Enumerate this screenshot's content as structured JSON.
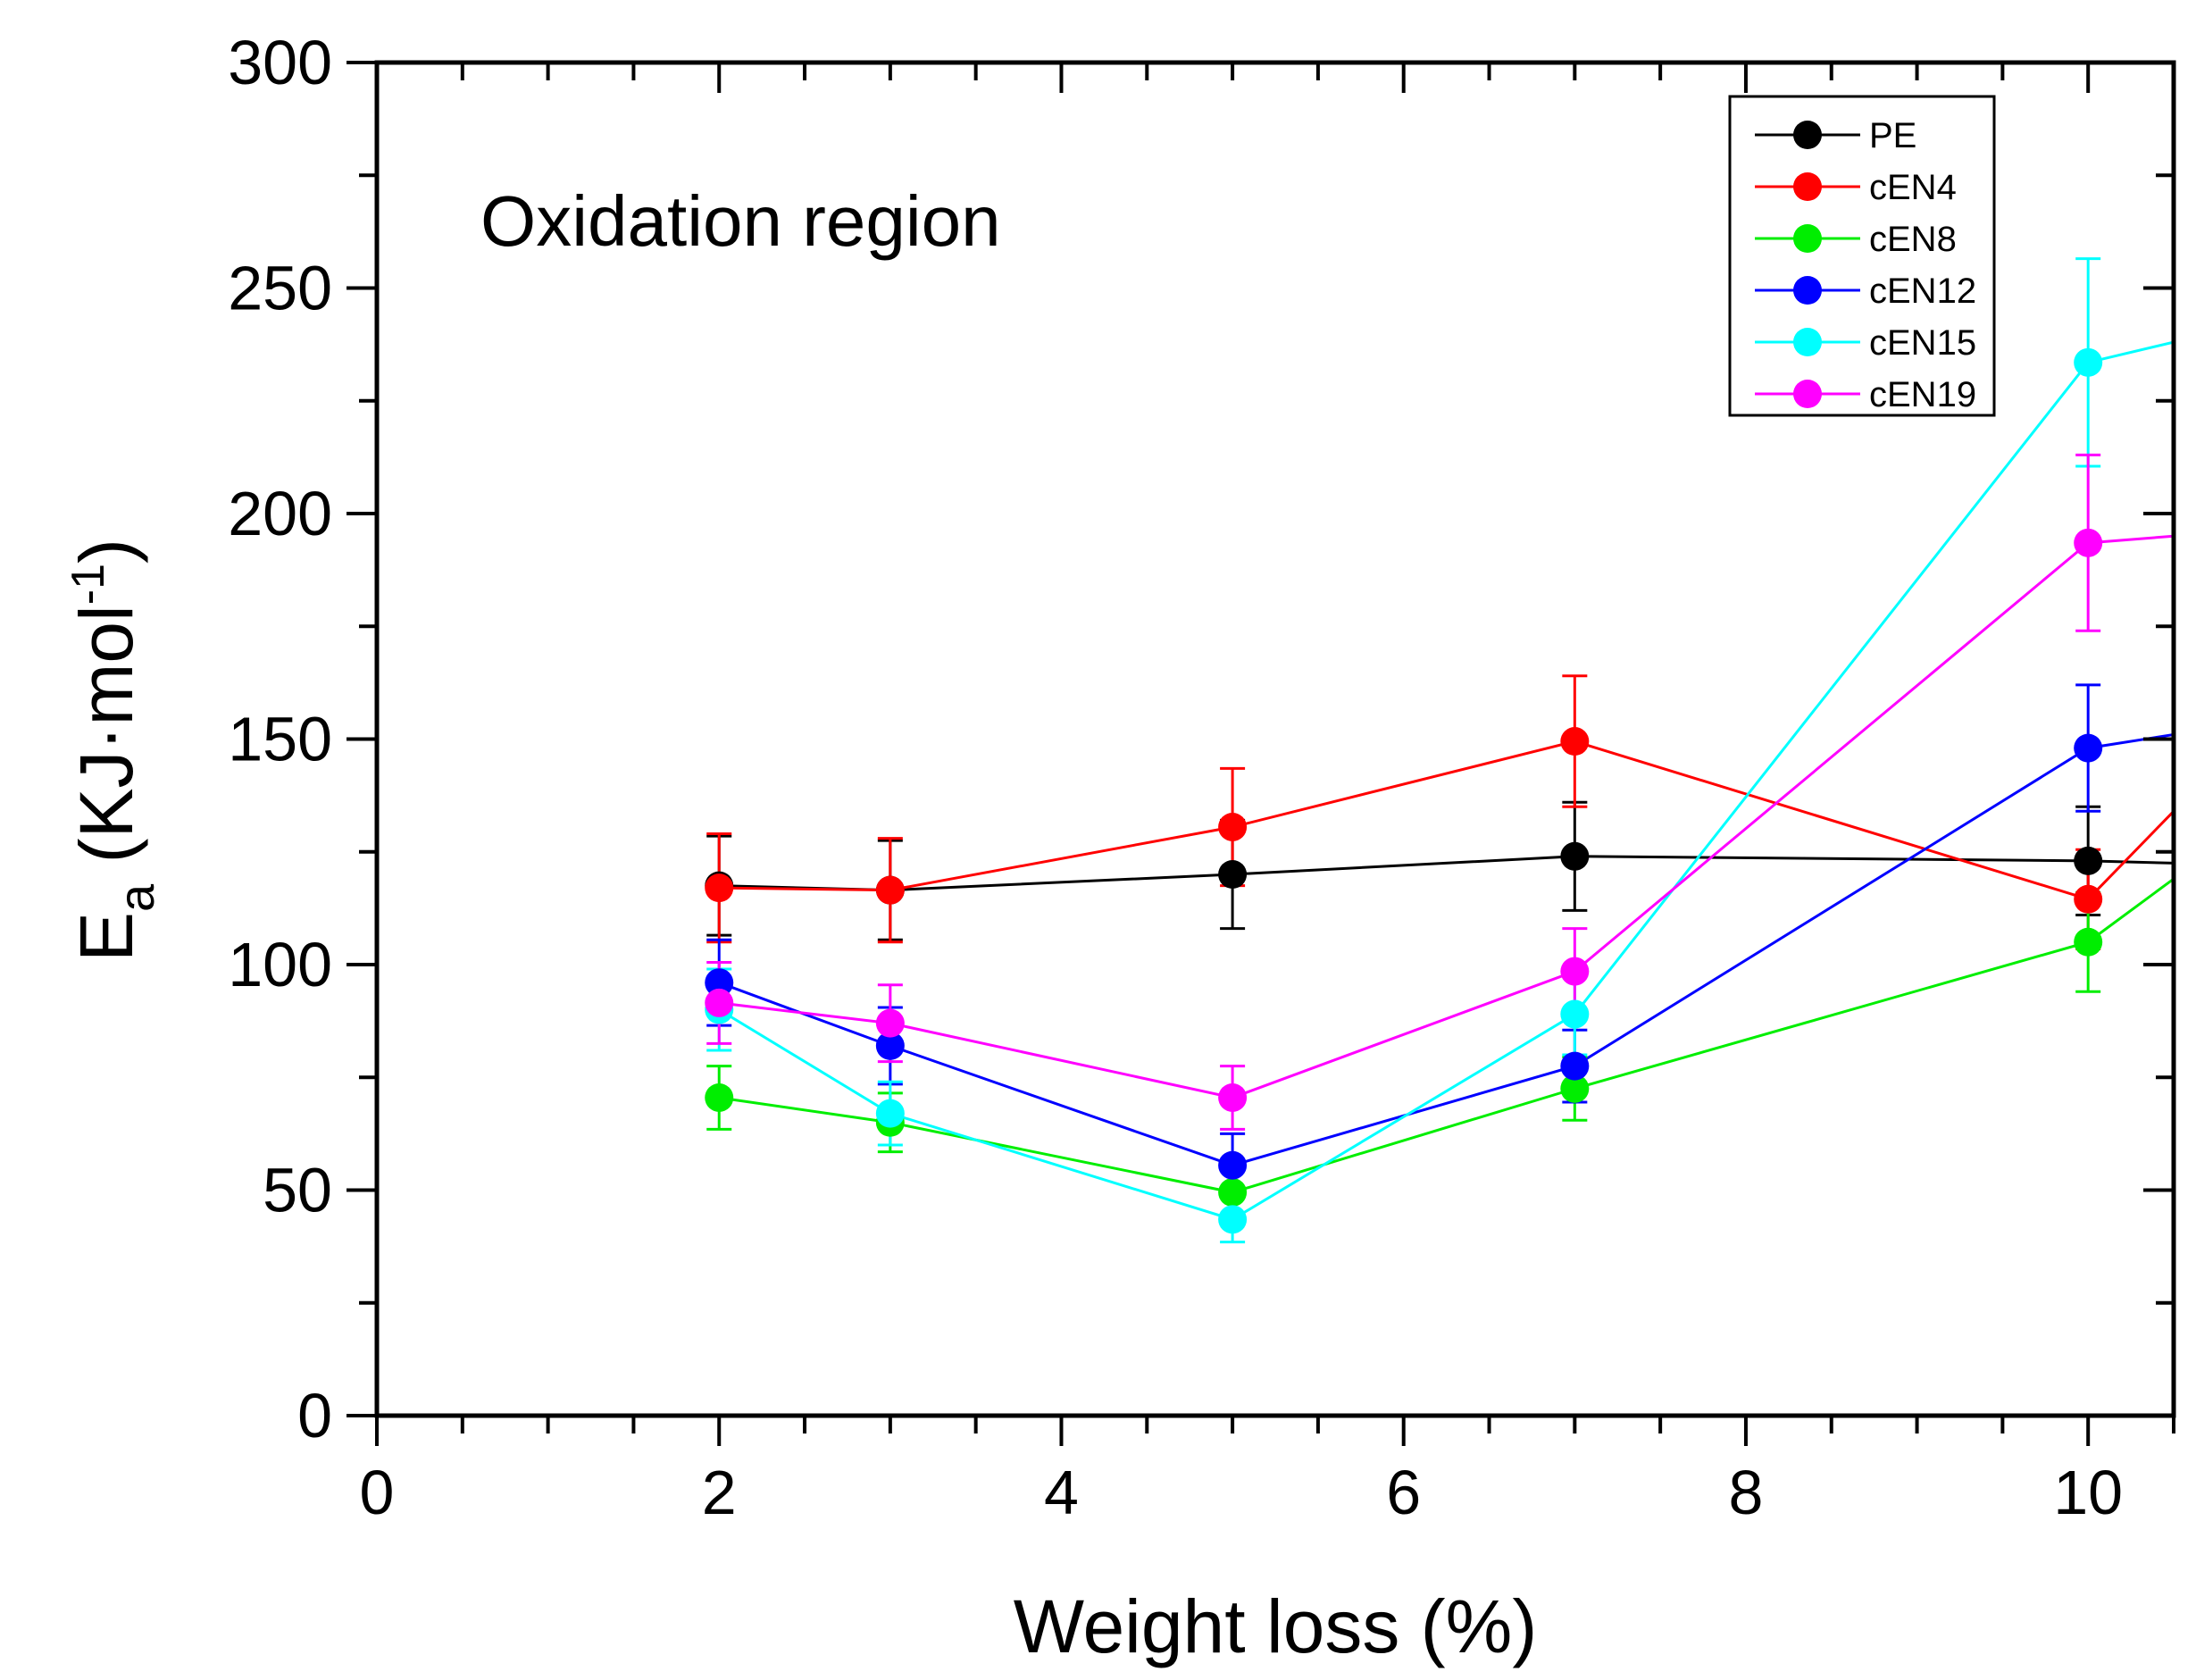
{
  "chart_data": {
    "type": "line",
    "title": "",
    "annotation": "Oxidation region",
    "xlabel": "Weight loss (%)",
    "ylabel": {
      "main": "E",
      "sub": "a",
      "unit_prefix": " (KJ·mol",
      "sup": "-1",
      "unit_suffix": ")"
    },
    "xlim": [
      0,
      10.5
    ],
    "ylim": [
      0,
      300
    ],
    "xticks": [
      0,
      2,
      4,
      6,
      8,
      10
    ],
    "xtick_labels": [
      "0",
      "2",
      "4",
      "6",
      "8",
      "10"
    ],
    "yticks": [
      0,
      50,
      100,
      150,
      200,
      250,
      300
    ],
    "ytick_labels": [
      "0",
      "50",
      "100",
      "150",
      "200",
      "250",
      "300"
    ],
    "x_minor_step": 0.5,
    "y_minor_step": 25,
    "grid": false,
    "legend_position": "top-right",
    "x": [
      2,
      3,
      5,
      7,
      10
    ],
    "series": [
      {
        "name": "PE",
        "color": "#000000",
        "values": [
          117.5,
          116.5,
          120,
          124,
          123
        ],
        "errors": [
          11,
          11,
          12,
          12,
          12
        ],
        "ext_y": 122.5
      },
      {
        "name": "cEN4",
        "color": "#ff0000",
        "values": [
          117,
          116.5,
          130.5,
          149.5,
          114.5
        ],
        "errors": [
          12,
          11.5,
          13,
          14.5,
          11
        ],
        "ext_y": 134
      },
      {
        "name": "cEN8",
        "color": "#00ee00",
        "values": [
          70.5,
          65,
          49.5,
          72.5,
          105
        ],
        "errors": [
          7,
          6.5,
          6,
          7,
          11
        ],
        "ext_y": 119
      },
      {
        "name": "cEN12",
        "color": "#0000ff",
        "values": [
          96,
          82,
          55.5,
          77.5,
          148
        ],
        "errors": [
          9.5,
          8.5,
          7,
          8,
          14
        ],
        "ext_y": 151
      },
      {
        "name": "cEN15",
        "color": "#00ffff",
        "values": [
          90,
          67,
          43.5,
          89,
          233.5
        ],
        "errors": [
          9,
          7,
          5,
          9,
          23
        ],
        "ext_y": 238
      },
      {
        "name": "cEN19",
        "color": "#ff00ff",
        "values": [
          91.5,
          87,
          70.5,
          98.5,
          193.5
        ],
        "errors": [
          9,
          8.5,
          7,
          9.5,
          19.5
        ],
        "ext_y": 195
      }
    ]
  }
}
